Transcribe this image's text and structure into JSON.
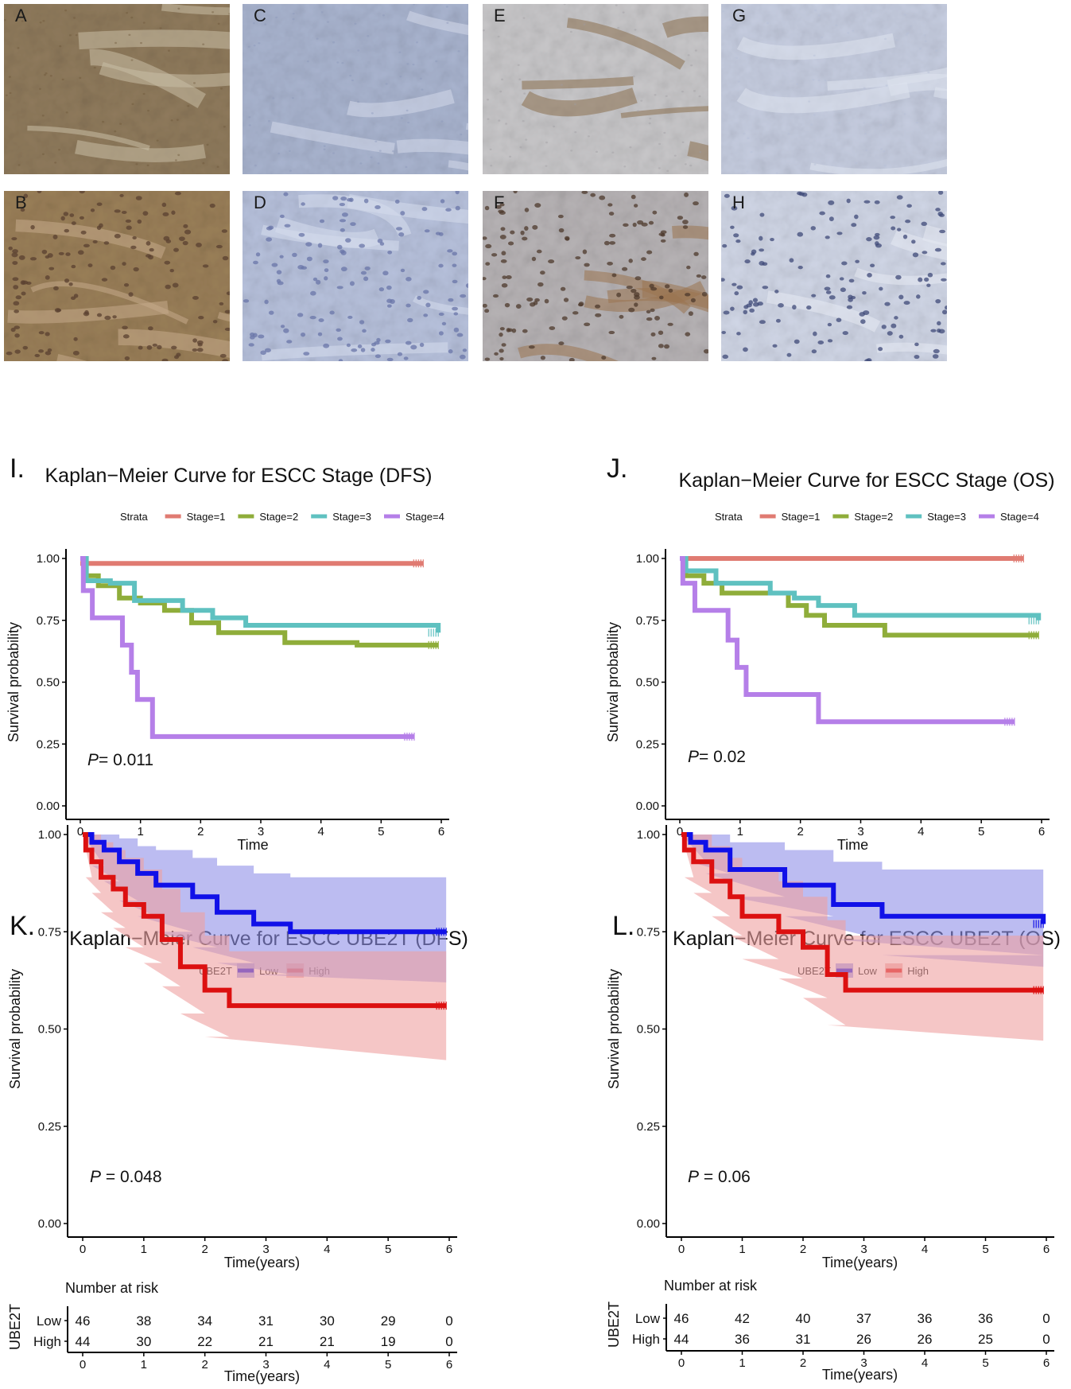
{
  "micrographs": [
    {
      "label": "A",
      "tone": "#8f7a5c",
      "stroke": "#c9bda5",
      "dots": "#6b5538",
      "cells": false
    },
    {
      "label": "C",
      "tone": "#a9b4cf",
      "stroke": "#d3d9ea",
      "dots": "#8a96b8",
      "cells": false
    },
    {
      "label": "E",
      "tone": "#c8c7c9",
      "stroke": "#8b6f4e",
      "dots": "#9e9aa0",
      "cells": false
    },
    {
      "label": "G",
      "tone": "#c6cde0",
      "stroke": "#dfe4ef",
      "dots": "#b5bed6",
      "cells": false
    },
    {
      "label": "B",
      "tone": "#9a7f58",
      "stroke": "#c4a98a",
      "dots": "#5a4030",
      "cells": true
    },
    {
      "label": "D",
      "tone": "#b7c1dc",
      "stroke": "#d6dcec",
      "dots": "#6a75a8",
      "cells": true
    },
    {
      "label": "F",
      "tone": "#b7b3b5",
      "stroke": "#9a7550",
      "dots": "#4e3a2c",
      "cells": true
    },
    {
      "label": "H",
      "tone": "#d0d6e6",
      "stroke": "#e6eaf3",
      "dots": "#3f4a78",
      "cells": true
    }
  ],
  "chart_data": [
    {
      "panel": "I.",
      "type": "line",
      "step": true,
      "title": "Kaplan−Meier Curve for ESCC Stage (DFS)",
      "xlabel": "Time",
      "ylabel": "Survival probability",
      "xlim": [
        0,
        6
      ],
      "ylim": [
        0,
        1
      ],
      "xticks": [
        "0",
        "1",
        "2",
        "3",
        "4",
        "5",
        "6"
      ],
      "yticks": [
        "0.00",
        "0.25",
        "0.50",
        "0.75",
        "1.00"
      ],
      "legend_title": "Strata",
      "pvalue_prefix": "P",
      "pvalue_text": "= 0.011",
      "series": [
        {
          "name": "Stage=1",
          "color": "#e07b72",
          "x": [
            0,
            5.7
          ],
          "y": [
            0.98,
            0.98
          ]
        },
        {
          "name": "Stage=2",
          "color": "#8fad3a",
          "x": [
            0,
            0.1,
            0.3,
            0.65,
            1.0,
            1.4,
            1.85,
            2.3,
            3.4,
            4.6,
            5.95
          ],
          "y": [
            1,
            0.93,
            0.89,
            0.84,
            0.82,
            0.79,
            0.74,
            0.7,
            0.66,
            0.65,
            0.65
          ]
        },
        {
          "name": "Stage=3",
          "color": "#5fc1c0",
          "x": [
            0,
            0.1,
            0.5,
            0.9,
            1.7,
            2.2,
            2.75,
            5.95
          ],
          "y": [
            1,
            0.91,
            0.9,
            0.83,
            0.79,
            0.76,
            0.73,
            0.7
          ]
        },
        {
          "name": "Stage=4",
          "color": "#b57fe8",
          "x": [
            0,
            0.05,
            0.2,
            0.7,
            0.85,
            0.95,
            1.2,
            5.55
          ],
          "y": [
            1,
            0.87,
            0.76,
            0.65,
            0.54,
            0.43,
            0.28,
            0.28
          ]
        }
      ]
    },
    {
      "panel": "J.",
      "type": "line",
      "step": true,
      "title": "Kaplan−Meier Curve for ESCC Stage (OS)",
      "xlabel": "Time",
      "ylabel": "Survival probability",
      "xlim": [
        0,
        6
      ],
      "ylim": [
        0,
        1
      ],
      "xticks": [
        "0",
        "1",
        "2",
        "3",
        "4",
        "5",
        "6"
      ],
      "yticks": [
        "0.00",
        "0.25",
        "0.50",
        "0.75",
        "1.00"
      ],
      "legend_title": "Strata",
      "pvalue_prefix": "P",
      "pvalue_text": "= 0.02",
      "series": [
        {
          "name": "Stage=1",
          "color": "#e07b72",
          "x": [
            0,
            5.7
          ],
          "y": [
            1,
            1
          ]
        },
        {
          "name": "Stage=2",
          "color": "#8fad3a",
          "x": [
            0,
            0.1,
            0.4,
            0.7,
            1.8,
            2.1,
            2.4,
            3.4,
            5.95
          ],
          "y": [
            1,
            0.93,
            0.9,
            0.86,
            0.81,
            0.77,
            0.73,
            0.69,
            0.69
          ]
        },
        {
          "name": "Stage=3",
          "color": "#5fc1c0",
          "x": [
            0,
            0.1,
            0.6,
            1.5,
            1.9,
            2.3,
            2.9,
            5.95
          ],
          "y": [
            1,
            0.95,
            0.9,
            0.86,
            0.84,
            0.81,
            0.77,
            0.75
          ]
        },
        {
          "name": "Stage=4",
          "color": "#b57fe8",
          "x": [
            0,
            0.05,
            0.25,
            0.8,
            0.95,
            1.1,
            2.3,
            5.55
          ],
          "y": [
            1,
            0.9,
            0.79,
            0.67,
            0.56,
            0.45,
            0.34,
            0.34
          ]
        }
      ]
    },
    {
      "panel": "K.",
      "type": "line",
      "step": true,
      "title": "Kaplan−Meier Curve for ESCC UBE2T (DFS)",
      "xlabel": "Time(years)",
      "ylabel": "Survival probability",
      "xlim": [
        0,
        6
      ],
      "ylim": [
        0,
        1
      ],
      "xticks": [
        "0",
        "1",
        "2",
        "3",
        "4",
        "5",
        "6"
      ],
      "yticks": [
        "0.00",
        "0.25",
        "0.50",
        "0.75",
        "1.00"
      ],
      "legend_title": "UBE2T",
      "pvalue_prefix": "P",
      "pvalue_text": " = 0.048",
      "series": [
        {
          "name": "Low",
          "color": "#1010e8",
          "band": "#8f8fe8",
          "x": [
            0,
            0.15,
            0.35,
            0.6,
            0.9,
            1.2,
            1.8,
            2.2,
            2.8,
            3.4,
            5.95
          ],
          "y": [
            1,
            0.98,
            0.96,
            0.93,
            0.9,
            0.87,
            0.84,
            0.8,
            0.77,
            0.75,
            0.75
          ],
          "lower": [
            1,
            0.92,
            0.88,
            0.83,
            0.79,
            0.75,
            0.71,
            0.67,
            0.64,
            0.62,
            0.62
          ],
          "upper": [
            1,
            1,
            1,
            0.99,
            0.97,
            0.96,
            0.94,
            0.92,
            0.9,
            0.89,
            0.89
          ]
        },
        {
          "name": "High",
          "color": "#dc1010",
          "band": "#eea0a0",
          "x": [
            0,
            0.05,
            0.15,
            0.3,
            0.5,
            0.7,
            1.0,
            1.3,
            1.6,
            2.0,
            2.4,
            5.95
          ],
          "y": [
            1,
            0.96,
            0.93,
            0.89,
            0.86,
            0.82,
            0.79,
            0.73,
            0.66,
            0.6,
            0.56,
            0.56
          ],
          "lower": [
            1,
            0.89,
            0.85,
            0.8,
            0.76,
            0.71,
            0.67,
            0.61,
            0.54,
            0.48,
            0.42,
            0.42
          ],
          "upper": [
            1,
            1,
            1,
            0.98,
            0.96,
            0.94,
            0.91,
            0.86,
            0.8,
            0.74,
            0.7,
            0.7
          ]
        }
      ]
    },
    {
      "panel": "L.",
      "type": "line",
      "step": true,
      "title": "Kaplan−Meier Curve for ESCC UBE2T (OS)",
      "xlabel": "Time(years)",
      "ylabel": "Survival probability",
      "xlim": [
        0,
        6
      ],
      "ylim": [
        0,
        1
      ],
      "xticks": [
        "0",
        "1",
        "2",
        "3",
        "4",
        "5",
        "6"
      ],
      "yticks": [
        "0.00",
        "0.25",
        "0.50",
        "0.75",
        "1.00"
      ],
      "legend_title": "UBE2T",
      "pvalue_prefix": "P",
      "pvalue_text": " = 0.06",
      "series": [
        {
          "name": "Low",
          "color": "#1010e8",
          "band": "#8f8fe8",
          "x": [
            0,
            0.15,
            0.4,
            0.8,
            1.7,
            2.5,
            3.3,
            5.95
          ],
          "y": [
            1,
            0.98,
            0.96,
            0.91,
            0.87,
            0.82,
            0.79,
            0.77
          ],
          "lower": [
            1,
            0.93,
            0.9,
            0.84,
            0.79,
            0.73,
            0.69,
            0.66
          ],
          "upper": [
            1,
            1,
            1,
            0.98,
            0.96,
            0.93,
            0.91,
            0.9
          ]
        },
        {
          "name": "High",
          "color": "#dc1010",
          "band": "#eea0a0",
          "x": [
            0,
            0.05,
            0.2,
            0.5,
            0.8,
            1.0,
            1.6,
            2.0,
            2.4,
            2.7,
            5.95
          ],
          "y": [
            1,
            0.96,
            0.93,
            0.88,
            0.84,
            0.79,
            0.75,
            0.71,
            0.64,
            0.6,
            0.6
          ],
          "lower": [
            1,
            0.89,
            0.85,
            0.79,
            0.74,
            0.68,
            0.63,
            0.58,
            0.51,
            0.47,
            0.47
          ],
          "upper": [
            1,
            1,
            1,
            0.97,
            0.94,
            0.91,
            0.88,
            0.84,
            0.78,
            0.74,
            0.74
          ]
        }
      ],
      "risk_table_note": "see risk_tables"
    }
  ],
  "risk_tables": [
    {
      "title": "Number at risk",
      "ylabel": "UBE2T",
      "xlabel": "Time(years)",
      "xticks": [
        "0",
        "1",
        "2",
        "3",
        "4",
        "5",
        "6"
      ],
      "rows": [
        {
          "name": "Low",
          "color": "#1010e8",
          "values": [
            "46",
            "38",
            "34",
            "31",
            "30",
            "29",
            "0"
          ]
        },
        {
          "name": "High",
          "color": "#dc1010",
          "values": [
            "44",
            "30",
            "22",
            "21",
            "21",
            "19",
            "0"
          ]
        }
      ]
    },
    {
      "title": "Number at risk",
      "ylabel": "UBE2T",
      "xlabel": "Time(years)",
      "xticks": [
        "0",
        "1",
        "2",
        "3",
        "4",
        "5",
        "6"
      ],
      "rows": [
        {
          "name": "Low",
          "color": "#1010e8",
          "values": [
            "46",
            "42",
            "40",
            "37",
            "36",
            "36",
            "0"
          ]
        },
        {
          "name": "High",
          "color": "#dc1010",
          "values": [
            "44",
            "36",
            "31",
            "26",
            "26",
            "25",
            "0"
          ]
        }
      ]
    }
  ]
}
